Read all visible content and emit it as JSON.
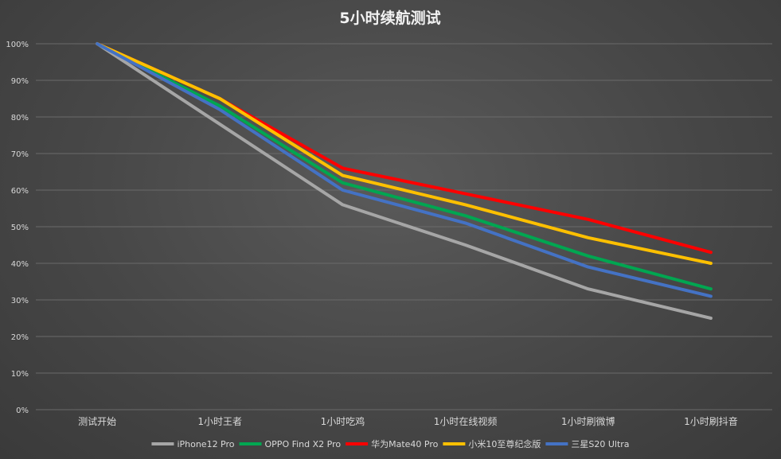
{
  "chart_data": {
    "type": "line",
    "title": "5小时续航测试",
    "categories": [
      "测试开始",
      "1小时王者",
      "1小时吃鸡",
      "1小时在线视频",
      "1小时刷微博",
      "1小时刷抖音"
    ],
    "ylim": [
      0,
      100
    ],
    "y_ticks": [
      "0%",
      "10%",
      "20%",
      "30%",
      "40%",
      "50%",
      "60%",
      "70%",
      "80%",
      "90%",
      "100%"
    ],
    "grid": true,
    "legend_position": "bottom",
    "series": [
      {
        "name": "iPhone12 Pro",
        "color": "#a6a6a6",
        "values": [
          100,
          78,
          56,
          45,
          33,
          25
        ]
      },
      {
        "name": "OPPO Find X2 Pro",
        "color": "#00a651",
        "values": [
          100,
          83,
          62,
          53,
          42,
          33
        ]
      },
      {
        "name": "华为Mate40 Pro",
        "color": "#ff0000",
        "values": [
          100,
          85,
          66,
          59,
          52,
          43
        ]
      },
      {
        "name": "小米10至尊纪念版",
        "color": "#ffc000",
        "values": [
          100,
          85,
          64,
          56,
          47,
          40
        ]
      },
      {
        "name": "三星S20 Ultra",
        "color": "#4472c4",
        "values": [
          100,
          82,
          60,
          51,
          39,
          31
        ]
      }
    ]
  }
}
